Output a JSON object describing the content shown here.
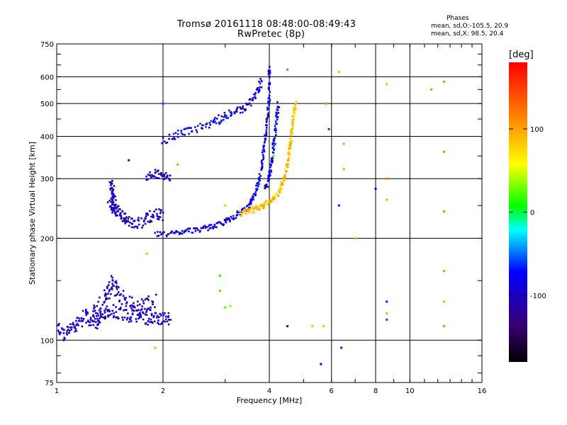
{
  "chart_data": {
    "type": "scatter",
    "title": "Tromsø 20161118 08:48:00-08:49:43",
    "subtitle": "RwPretec (8p)",
    "xlabel": "Frequency [MHz]",
    "ylabel": "Stationary phase Virtual Height [km]",
    "x_scale": "log",
    "y_scale": "log",
    "xlim": [
      1,
      16
    ],
    "ylim": [
      75,
      750
    ],
    "x_ticks": [
      1,
      2,
      4,
      6,
      8,
      10,
      16
    ],
    "y_ticks": [
      75,
      100,
      200,
      300,
      400,
      500,
      600,
      750
    ],
    "grid": true,
    "legend": {
      "title": "Phases",
      "lines": [
        "mean, sd,O:-105.5, 20.9",
        "mean, sd,X:  98.5, 20.4"
      ],
      "placement": "top-right"
    },
    "colorbar": {
      "label": "[deg]",
      "ticks": [
        100,
        0,
        -100
      ],
      "range": [
        -180,
        180
      ],
      "colors": [
        "#000000",
        "#3a0070",
        "#0000ff",
        "#00ffff",
        "#00ff00",
        "#ffff00",
        "#ff8000",
        "#ff0000"
      ]
    },
    "traces": [
      {
        "name": "low_E",
        "phase": -115,
        "spread": 0.045,
        "points": [
          [
            1.0,
            110
          ],
          [
            1.05,
            103
          ],
          [
            1.1,
            108
          ],
          [
            1.15,
            112
          ],
          [
            1.2,
            118
          ],
          [
            1.25,
            115
          ],
          [
            1.3,
            112
          ],
          [
            1.35,
            120
          ],
          [
            1.4,
            123
          ],
          [
            1.5,
            121
          ],
          [
            1.6,
            118
          ],
          [
            1.7,
            117
          ],
          [
            1.8,
            116
          ],
          [
            1.9,
            116
          ],
          [
            2.0,
            116
          ],
          [
            2.1,
            116
          ]
        ]
      },
      {
        "name": "E_upper",
        "phase": -118,
        "spread": 0.05,
        "points": [
          [
            1.25,
            118
          ],
          [
            1.35,
            130
          ],
          [
            1.4,
            140
          ],
          [
            1.45,
            150
          ],
          [
            1.5,
            135
          ],
          [
            1.6,
            130
          ],
          [
            1.7,
            125
          ],
          [
            1.8,
            128
          ],
          [
            1.9,
            130
          ]
        ]
      },
      {
        "name": "Es_mid",
        "phase": -118,
        "spread": 0.04,
        "points": [
          [
            1.4,
            250
          ],
          [
            1.45,
            245
          ],
          [
            1.5,
            240
          ],
          [
            1.55,
            230
          ],
          [
            1.6,
            225
          ],
          [
            1.7,
            220
          ],
          [
            1.8,
            230
          ],
          [
            1.9,
            235
          ],
          [
            2.0,
            235
          ]
        ]
      },
      {
        "name": "Es_col",
        "phase": -120,
        "spread": 0.04,
        "points": [
          [
            1.42,
            290
          ],
          [
            1.44,
            275
          ],
          [
            1.45,
            260
          ],
          [
            1.46,
            245
          ]
        ]
      },
      {
        "name": "F1_O",
        "phase": -110,
        "spread": 0.018,
        "points": [
          [
            1.9,
            205
          ],
          [
            2.1,
            206
          ],
          [
            2.3,
            210
          ],
          [
            2.5,
            212
          ],
          [
            2.7,
            215
          ],
          [
            2.9,
            220
          ],
          [
            3.1,
            228
          ],
          [
            3.3,
            238
          ],
          [
            3.5,
            248
          ],
          [
            3.6,
            262
          ],
          [
            3.7,
            285
          ],
          [
            3.8,
            320
          ],
          [
            3.85,
            360
          ],
          [
            3.9,
            400
          ],
          [
            3.95,
            460
          ],
          [
            4.0,
            520
          ],
          [
            4.0,
            600
          ],
          [
            4.0,
            640
          ]
        ]
      },
      {
        "name": "F2_O_edge",
        "phase": -105,
        "spread": 0.025,
        "points": [
          [
            3.9,
            280
          ],
          [
            4.0,
            300
          ],
          [
            4.05,
            330
          ],
          [
            4.1,
            360
          ],
          [
            4.15,
            400
          ],
          [
            4.2,
            450
          ],
          [
            4.25,
            500
          ]
        ]
      },
      {
        "name": "F_X",
        "phase": 105,
        "spread": 0.02,
        "points": [
          [
            3.3,
            237
          ],
          [
            3.5,
            240
          ],
          [
            3.7,
            245
          ],
          [
            3.9,
            252
          ],
          [
            4.1,
            262
          ],
          [
            4.3,
            278
          ],
          [
            4.4,
            300
          ],
          [
            4.5,
            330
          ],
          [
            4.55,
            360
          ],
          [
            4.6,
            390
          ],
          [
            4.65,
            430
          ],
          [
            4.7,
            470
          ],
          [
            4.75,
            500
          ]
        ]
      },
      {
        "name": "upper_F",
        "phase": -108,
        "spread": 0.03,
        "points": [
          [
            2.0,
            390
          ],
          [
            2.2,
            405
          ],
          [
            2.4,
            420
          ],
          [
            2.7,
            430
          ],
          [
            2.9,
            450
          ],
          [
            3.1,
            465
          ],
          [
            3.3,
            480
          ],
          [
            3.5,
            500
          ],
          [
            3.7,
            540
          ],
          [
            3.8,
            580
          ]
        ]
      },
      {
        "name": "mid_layer",
        "phase": -112,
        "spread": 0.03,
        "points": [
          [
            1.8,
            305
          ],
          [
            1.9,
            310
          ],
          [
            2.0,
            305
          ],
          [
            2.1,
            300
          ]
        ]
      },
      {
        "name": "scatter_hf",
        "phase": 120,
        "spread": 0.1,
        "points": [
          [
            5.8,
            500
          ],
          [
            6.5,
            380
          ],
          [
            8.6,
            570
          ],
          [
            8.6,
            300
          ],
          [
            12.5,
            360
          ],
          [
            12.5,
            240
          ],
          [
            12.5,
            160
          ],
          [
            12.5,
            130
          ],
          [
            12.5,
            110
          ],
          [
            8.6,
            260
          ],
          [
            8.6,
            120
          ],
          [
            12.5,
            580
          ],
          [
            11.5,
            550
          ],
          [
            5.7,
            110
          ],
          [
            6.3,
            620
          ],
          [
            4.5,
            630
          ],
          [
            2.9,
            140
          ],
          [
            2.2,
            330
          ]
        ]
      },
      {
        "name": "scatter_blue",
        "phase": -95,
        "spread": 0.1,
        "points": [
          [
            8.6,
            130
          ],
          [
            8.6,
            115
          ],
          [
            8.0,
            280
          ],
          [
            5.9,
            420
          ],
          [
            6.3,
            250
          ],
          [
            6.4,
            95
          ],
          [
            5.6,
            85
          ],
          [
            4.5,
            110
          ],
          [
            2.0,
            500
          ],
          [
            1.6,
            340
          ]
        ]
      },
      {
        "name": "scatter_misc",
        "phase": 30,
        "spread": 0.08,
        "points": [
          [
            3.0,
            250
          ],
          [
            3.0,
            125
          ],
          [
            3.1,
            126
          ],
          [
            5.3,
            110
          ],
          [
            6.5,
            320
          ],
          [
            7.0,
            200
          ],
          [
            1.8,
            180
          ],
          [
            1.9,
            95
          ],
          [
            2.9,
            155
          ],
          [
            4.1,
            350
          ]
        ]
      }
    ]
  }
}
